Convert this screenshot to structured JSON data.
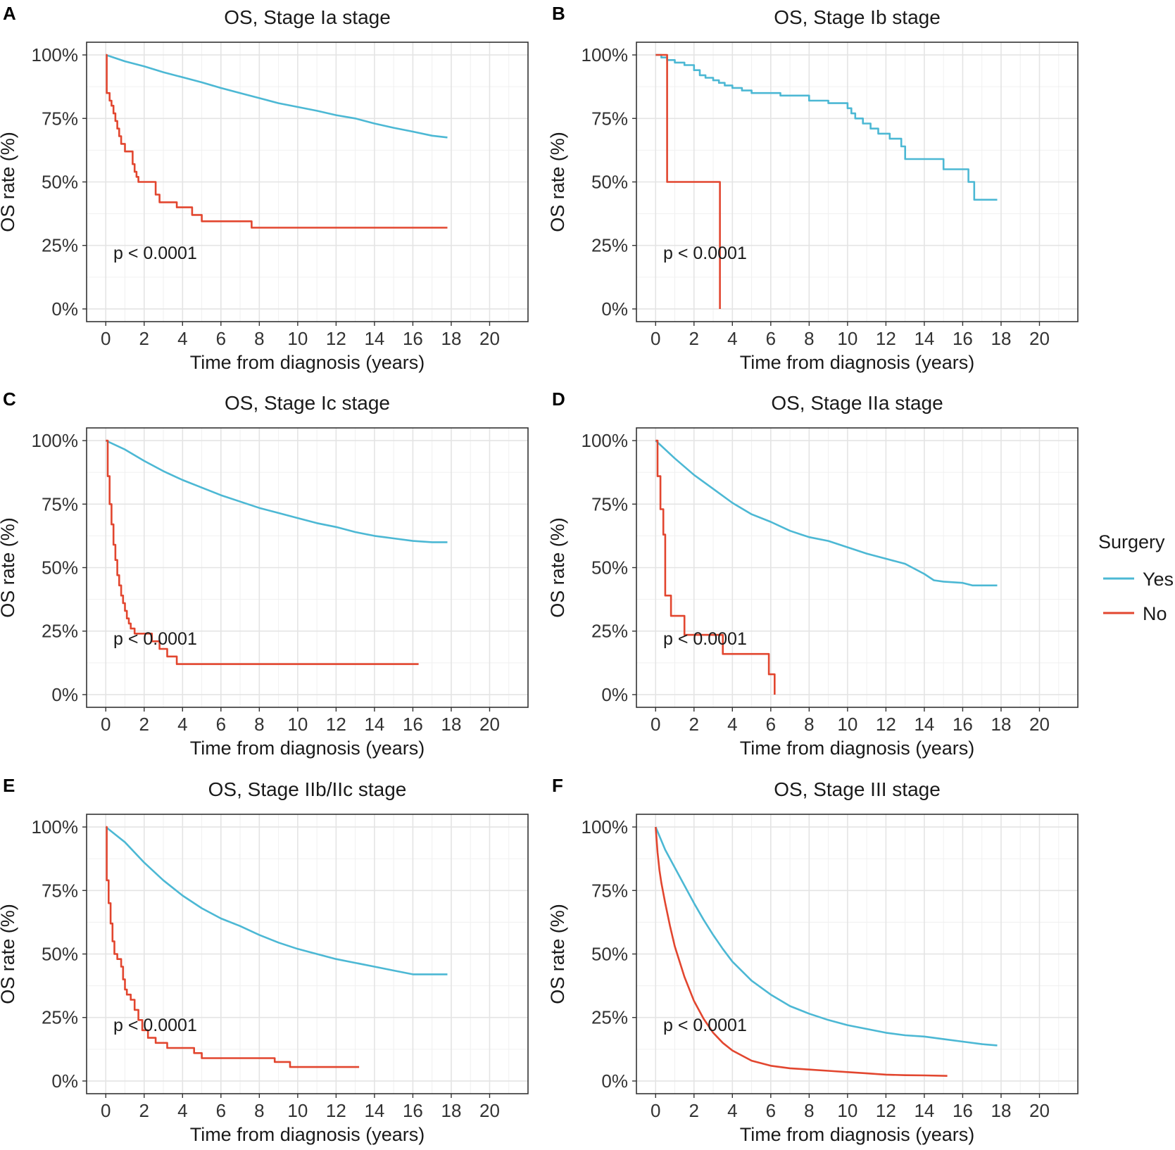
{
  "figure": {
    "colors": {
      "Yes": "#4CB8D4",
      "No": "#E2462F"
    },
    "legend": {
      "title": "Surgery",
      "entries": [
        "Yes",
        "No"
      ]
    }
  },
  "chart_data": [
    {
      "letter": "A",
      "type": "line",
      "title": "OS, Stage Ia stage",
      "xlabel": "Time from diagnosis (years)",
      "ylabel": "OS rate (%)",
      "xticks": [
        0,
        2,
        4,
        6,
        8,
        10,
        12,
        14,
        16,
        18,
        20
      ],
      "yticks": [
        0,
        25,
        50,
        75,
        100
      ],
      "ytick_labels": [
        "0%",
        "25%",
        "50%",
        "75%",
        "100%"
      ],
      "xlim": [
        -1,
        22
      ],
      "ylim": [
        -5,
        105
      ],
      "grid": true,
      "pvalue": "p < 0.0001",
      "series": [
        {
          "name": "Yes",
          "step": false,
          "x": [
            0,
            1,
            2,
            3,
            4,
            5,
            6,
            7,
            8,
            9,
            10,
            11,
            12,
            13,
            14,
            15,
            16,
            17,
            17.8
          ],
          "y": [
            100,
            97.5,
            95.5,
            93.2,
            91.2,
            89.2,
            87,
            85,
            83,
            81,
            79.5,
            78,
            76.3,
            75,
            73,
            71.3,
            69.8,
            68.2,
            67.5
          ]
        },
        {
          "name": "No",
          "step": true,
          "x": [
            0,
            0.05,
            0.2,
            0.3,
            0.4,
            0.5,
            0.6,
            0.7,
            0.8,
            1.0,
            1.4,
            1.5,
            1.6,
            1.7,
            2.0,
            2.6,
            2.8,
            3.7,
            4.5,
            5.0,
            7.6,
            17.8
          ],
          "y": [
            100,
            85,
            82,
            80,
            77,
            74,
            71,
            68,
            65,
            62,
            57,
            54,
            52,
            50,
            50,
            45,
            42,
            40,
            37,
            34.5,
            32,
            32
          ]
        }
      ]
    },
    {
      "letter": "B",
      "type": "line",
      "title": "OS, Stage Ib stage",
      "xlabel": "Time from diagnosis (years)",
      "ylabel": "OS rate (%)",
      "xticks": [
        0,
        2,
        4,
        6,
        8,
        10,
        12,
        14,
        16,
        18,
        20
      ],
      "yticks": [
        0,
        25,
        50,
        75,
        100
      ],
      "ytick_labels": [
        "0%",
        "25%",
        "50%",
        "75%",
        "100%"
      ],
      "xlim": [
        -1,
        22
      ],
      "ylim": [
        -5,
        105
      ],
      "grid": true,
      "pvalue": "p < 0.0001",
      "series": [
        {
          "name": "Yes",
          "step": true,
          "x": [
            0,
            0.3,
            0.6,
            1.0,
            1.5,
            2.0,
            2.3,
            2.6,
            3.0,
            3.3,
            3.6,
            4.0,
            4.5,
            5.0,
            6.5,
            8.0,
            9.0,
            10.0,
            10.2,
            10.4,
            10.8,
            11.2,
            11.6,
            12.2,
            12.8,
            13.0,
            15.0,
            16.3,
            16.6,
            17.8
          ],
          "y": [
            100,
            99,
            98,
            97,
            96,
            94,
            92,
            91,
            90,
            89,
            88,
            87,
            86,
            85,
            84,
            82,
            81,
            79,
            77,
            75,
            73,
            71,
            69,
            67,
            64,
            59,
            55,
            50,
            43,
            43
          ]
        },
        {
          "name": "No",
          "step": true,
          "x": [
            0,
            0.5,
            0.6,
            3.35,
            3.35
          ],
          "y": [
            100,
            100,
            50,
            50,
            0
          ]
        }
      ]
    },
    {
      "letter": "C",
      "type": "line",
      "title": "OS, Stage Ic stage",
      "xlabel": "Time from diagnosis (years)",
      "ylabel": "OS rate (%)",
      "xticks": [
        0,
        2,
        4,
        6,
        8,
        10,
        12,
        14,
        16,
        18,
        20
      ],
      "yticks": [
        0,
        25,
        50,
        75,
        100
      ],
      "ytick_labels": [
        "0%",
        "25%",
        "50%",
        "75%",
        "100%"
      ],
      "xlim": [
        -1,
        22
      ],
      "ylim": [
        -5,
        105
      ],
      "grid": true,
      "pvalue": "p < 0.0001",
      "series": [
        {
          "name": "Yes",
          "step": false,
          "x": [
            0,
            1,
            2,
            3,
            4,
            5,
            6,
            7,
            8,
            9,
            10,
            11,
            12,
            13,
            14,
            15,
            16,
            17,
            17.8
          ],
          "y": [
            100,
            96.5,
            92,
            88,
            84.5,
            81.5,
            78.5,
            76,
            73.5,
            71.5,
            69.5,
            67.5,
            66,
            64,
            62.5,
            61.5,
            60.5,
            60,
            60
          ]
        },
        {
          "name": "No",
          "step": true,
          "x": [
            0,
            0.1,
            0.2,
            0.3,
            0.4,
            0.5,
            0.6,
            0.7,
            0.8,
            0.9,
            1.0,
            1.1,
            1.2,
            1.3,
            1.5,
            2.4,
            2.8,
            3.2,
            3.7,
            16.3
          ],
          "y": [
            100,
            86,
            75,
            67,
            59,
            53,
            47,
            43,
            39,
            36,
            33,
            30,
            28,
            26,
            24,
            21,
            18,
            15,
            12,
            12
          ]
        }
      ]
    },
    {
      "letter": "D",
      "type": "line",
      "title": "OS, Stage IIa stage",
      "xlabel": "Time from diagnosis (years)",
      "ylabel": "OS rate (%)",
      "xticks": [
        0,
        2,
        4,
        6,
        8,
        10,
        12,
        14,
        16,
        18,
        20
      ],
      "yticks": [
        0,
        25,
        50,
        75,
        100
      ],
      "ytick_labels": [
        "0%",
        "25%",
        "50%",
        "75%",
        "100%"
      ],
      "xlim": [
        -1,
        22
      ],
      "ylim": [
        -5,
        105
      ],
      "grid": true,
      "pvalue": "p < 0.0001",
      "series": [
        {
          "name": "Yes",
          "step": false,
          "x": [
            0,
            1,
            2,
            3,
            4,
            5,
            6,
            7,
            8,
            9,
            10,
            11,
            12,
            13,
            14,
            14.5,
            15,
            16,
            16.5,
            17.8
          ],
          "y": [
            100,
            93,
            86.5,
            81,
            75.5,
            71,
            68,
            64.5,
            62,
            60.5,
            58,
            55.5,
            53.5,
            51.5,
            47.5,
            45,
            44.5,
            44,
            43,
            43
          ]
        },
        {
          "name": "No",
          "step": true,
          "x": [
            0,
            0.1,
            0.25,
            0.4,
            0.5,
            0.8,
            1.5,
            3.5,
            5.9,
            6.2,
            6.2
          ],
          "y": [
            100,
            86,
            73,
            63,
            39,
            31,
            23.5,
            16,
            8,
            8,
            0
          ]
        }
      ]
    },
    {
      "letter": "E",
      "type": "line",
      "title": "OS, Stage IIb/IIc stage",
      "xlabel": "Time from diagnosis (years)",
      "ylabel": "OS rate (%)",
      "xticks": [
        0,
        2,
        4,
        6,
        8,
        10,
        12,
        14,
        16,
        18,
        20
      ],
      "yticks": [
        0,
        25,
        50,
        75,
        100
      ],
      "ytick_labels": [
        "0%",
        "25%",
        "50%",
        "75%",
        "100%"
      ],
      "xlim": [
        -1,
        22
      ],
      "ylim": [
        -5,
        105
      ],
      "grid": true,
      "pvalue": "p < 0.0001",
      "series": [
        {
          "name": "Yes",
          "step": false,
          "x": [
            0,
            0.5,
            1,
            2,
            3,
            4,
            5,
            6,
            7,
            8,
            9,
            10,
            11,
            12,
            13,
            14,
            15,
            16,
            17.8
          ],
          "y": [
            100,
            97,
            94,
            86,
            79,
            73,
            68,
            64,
            61,
            57.5,
            54.5,
            52,
            50,
            48,
            46.5,
            45,
            43.5,
            42,
            42
          ]
        },
        {
          "name": "No",
          "step": true,
          "x": [
            0,
            0.05,
            0.15,
            0.25,
            0.35,
            0.45,
            0.6,
            0.8,
            0.9,
            1.0,
            1.1,
            1.3,
            1.5,
            1.7,
            1.9,
            2.2,
            2.6,
            3.2,
            4.6,
            5.0,
            6.0,
            8.8,
            9.6,
            13.2
          ],
          "y": [
            100,
            79,
            70,
            62,
            55,
            50,
            48,
            45,
            40,
            36,
            34,
            32,
            28,
            24,
            20,
            17,
            15,
            13,
            11,
            9,
            9,
            7.5,
            5.5,
            5.5
          ]
        }
      ]
    },
    {
      "letter": "F",
      "type": "line",
      "title": "OS, Stage III stage",
      "xlabel": "Time from diagnosis (years)",
      "ylabel": "OS rate (%)",
      "xticks": [
        0,
        2,
        4,
        6,
        8,
        10,
        12,
        14,
        16,
        18,
        20
      ],
      "yticks": [
        0,
        25,
        50,
        75,
        100
      ],
      "ytick_labels": [
        "0%",
        "25%",
        "50%",
        "75%",
        "100%"
      ],
      "xlim": [
        -1,
        22
      ],
      "ylim": [
        -5,
        105
      ],
      "grid": true,
      "pvalue": "p < 0.0001",
      "series": [
        {
          "name": "Yes",
          "step": false,
          "x": [
            0,
            0.5,
            1,
            1.5,
            2,
            2.5,
            3,
            3.5,
            4,
            5,
            6,
            7,
            8,
            9,
            10,
            11,
            12,
            13,
            14,
            15,
            16,
            17,
            17.8
          ],
          "y": [
            100,
            91,
            84,
            77,
            70,
            63.5,
            57.5,
            52,
            47,
            39.5,
            34,
            29.5,
            26.5,
            24,
            22,
            20.5,
            19,
            18,
            17.5,
            16.5,
            15.5,
            14.5,
            14
          ]
        },
        {
          "name": "No",
          "step": false,
          "x": [
            0,
            0.1,
            0.2,
            0.3,
            0.5,
            0.75,
            1,
            1.5,
            2,
            2.5,
            3,
            3.5,
            4,
            5,
            6,
            7,
            8,
            9,
            10,
            11,
            12,
            13,
            14,
            15.2
          ],
          "y": [
            100,
            90,
            83,
            78,
            70,
            61,
            53,
            41,
            31.5,
            24.5,
            19,
            15,
            12,
            8,
            6,
            5,
            4.5,
            4,
            3.5,
            3,
            2.5,
            2.3,
            2.2,
            2
          ]
        }
      ]
    }
  ]
}
